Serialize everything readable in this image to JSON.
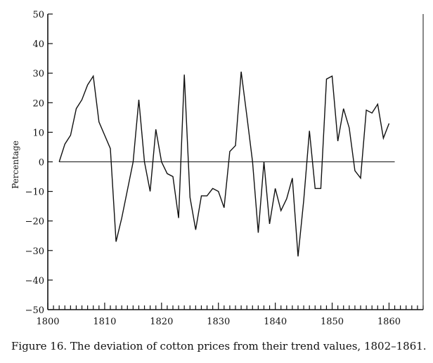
{
  "caption": "Figure 16. The deviation of cotton prices from their trend values, 1802–1861.",
  "chart_data": {
    "type": "line",
    "ylabel": "Percentage",
    "xlabel": "",
    "xlim": [
      1800,
      1866
    ],
    "ylim": [
      -50,
      50
    ],
    "x_ticks": [
      1800,
      1810,
      1820,
      1830,
      1840,
      1850,
      1860
    ],
    "y_ticks": [
      50,
      40,
      30,
      20,
      10,
      0,
      -10,
      -20,
      -30,
      -40,
      -50
    ],
    "y_tick_labels": [
      "50",
      "40",
      "30",
      "20",
      "10",
      "0",
      "−10",
      "−20",
      "−30",
      "−40",
      "−50"
    ],
    "zero_line": true,
    "grid": false,
    "series": [
      {
        "x": [
          1802,
          1803,
          1804,
          1805,
          1806,
          1807,
          1808,
          1809,
          1810,
          1811,
          1812,
          1813,
          1814,
          1815,
          1816,
          1817,
          1818,
          1819,
          1820,
          1821,
          1822,
          1823,
          1824,
          1825,
          1826,
          1827,
          1828,
          1829,
          1830,
          1831,
          1832,
          1833,
          1834,
          1835,
          1836,
          1837,
          1838,
          1839,
          1840,
          1841,
          1842,
          1843,
          1844,
          1845,
          1846,
          1847,
          1848,
          1849,
          1850,
          1851,
          1852,
          1853,
          1854,
          1855,
          1856,
          1857,
          1858,
          1859,
          1860,
          1861
        ],
        "y": [
          0,
          6,
          9,
          18,
          21,
          26,
          29,
          13.5,
          9,
          4.5,
          -27,
          -19,
          -9.5,
          0,
          21,
          0,
          -10,
          11,
          0,
          -4,
          -5,
          -19,
          29.5,
          -12,
          -23,
          -11.5,
          -11.5,
          -9,
          -10,
          -15.5,
          3.5,
          5.5,
          30.5,
          15.5,
          0,
          -24,
          0,
          -21,
          -9,
          -16.5,
          -12.5,
          -5.5,
          -32,
          -13,
          10.5,
          -9,
          -9,
          28,
          29,
          7,
          18,
          11.5,
          -3,
          -5.5,
          17.5,
          16.5,
          19.5,
          8,
          13,
          null
        ]
      }
    ]
  }
}
